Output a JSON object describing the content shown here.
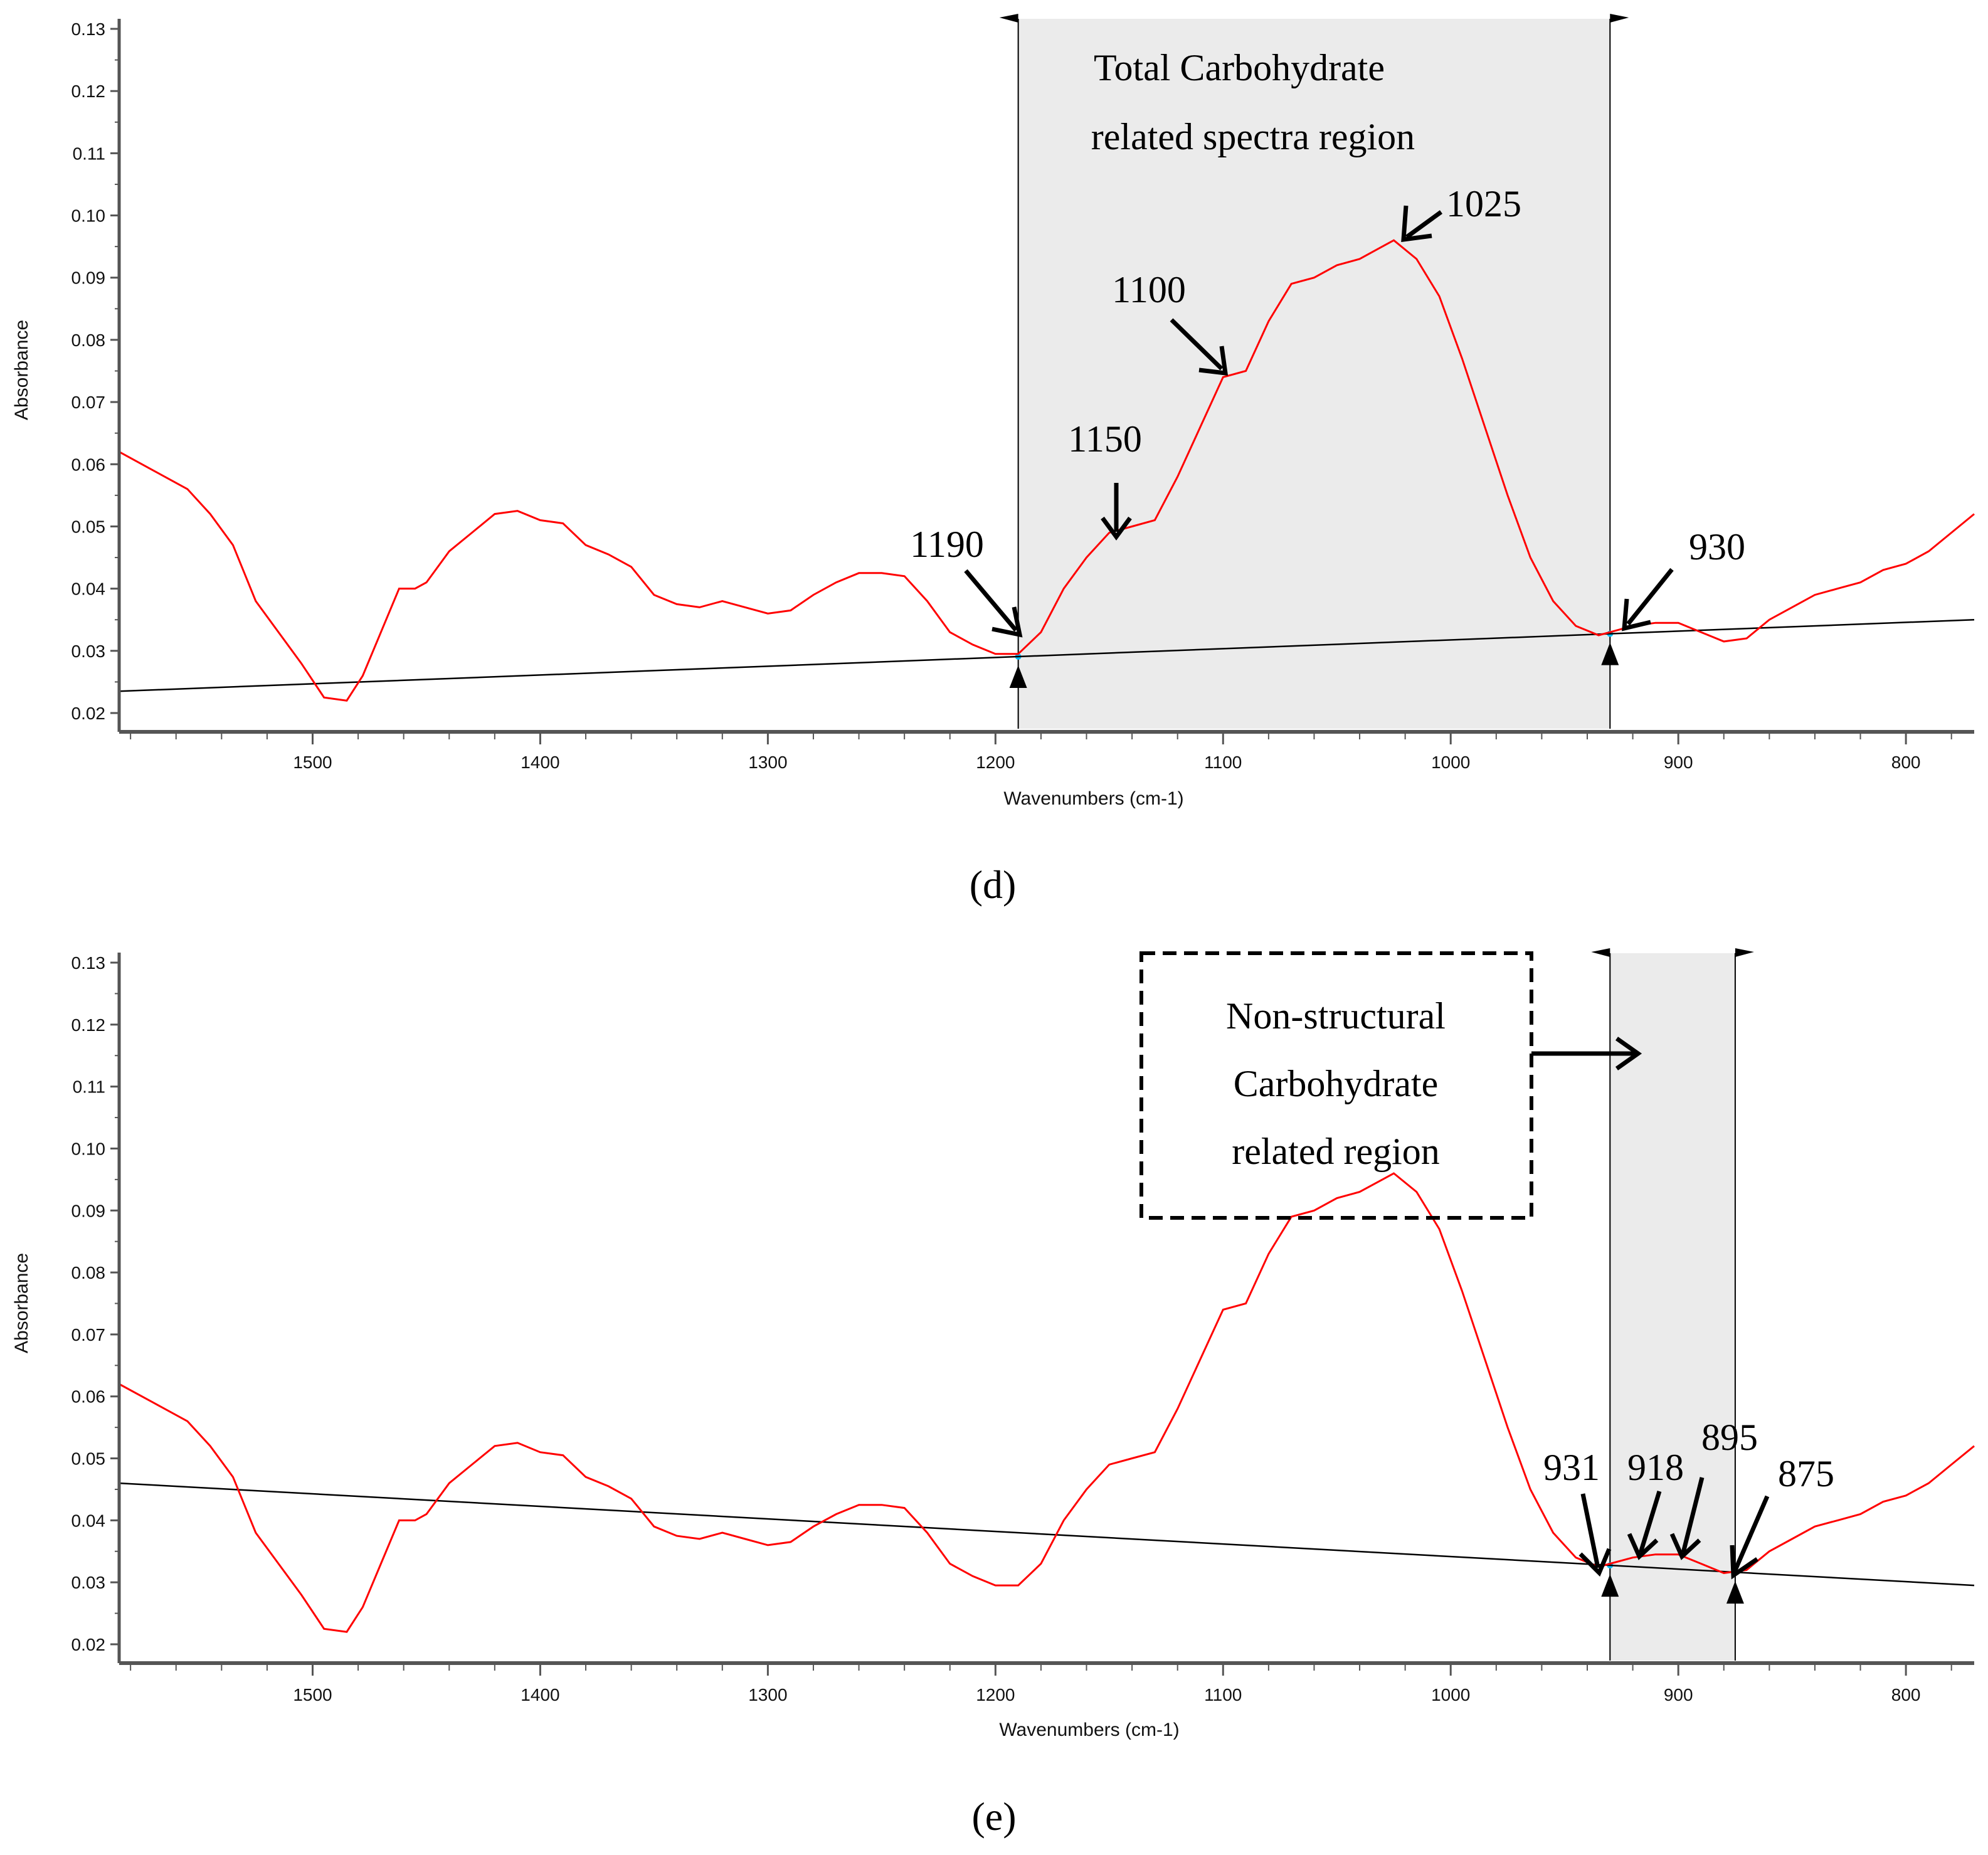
{
  "chart_data": [
    {
      "panel": "(d)",
      "type": "line",
      "xlabel": "Wavenumbers (cm-1)",
      "ylabel": "Absorbance",
      "xlim": [
        1585,
        770
      ],
      "ylim": [
        0.018,
        0.131
      ],
      "xticks": [
        "1500",
        "1400",
        "1300",
        "1200",
        "1100",
        "1000",
        "900",
        "800"
      ],
      "yticks": [
        "0.02",
        "0.03",
        "0.04",
        "0.05",
        "0.06",
        "0.07",
        "0.08",
        "0.09",
        "0.10",
        "0.11",
        "0.12",
        "0.13"
      ],
      "series": [
        {
          "name": "spectrum",
          "color": "#ff0000",
          "x": [
            1585,
            1570,
            1555,
            1545,
            1535,
            1525,
            1515,
            1505,
            1495,
            1485,
            1478,
            1470,
            1462,
            1455,
            1450,
            1440,
            1430,
            1420,
            1410,
            1400,
            1390,
            1380,
            1370,
            1360,
            1350,
            1340,
            1330,
            1320,
            1310,
            1300,
            1290,
            1280,
            1270,
            1260,
            1250,
            1240,
            1230,
            1220,
            1210,
            1200,
            1190,
            1180,
            1170,
            1160,
            1150,
            1140,
            1130,
            1120,
            1110,
            1100,
            1090,
            1080,
            1070,
            1060,
            1050,
            1040,
            1030,
            1025,
            1015,
            1005,
            995,
            985,
            975,
            965,
            955,
            945,
            935,
            930,
            920,
            910,
            900,
            890,
            880,
            870,
            860,
            850,
            840,
            830,
            820,
            810,
            800,
            790,
            780,
            770
          ],
          "y": [
            0.062,
            0.059,
            0.056,
            0.052,
            0.047,
            0.038,
            0.033,
            0.028,
            0.0225,
            0.022,
            0.026,
            0.033,
            0.04,
            0.04,
            0.041,
            0.046,
            0.049,
            0.052,
            0.0525,
            0.051,
            0.0505,
            0.047,
            0.0455,
            0.0435,
            0.039,
            0.0375,
            0.037,
            0.038,
            0.037,
            0.036,
            0.0365,
            0.039,
            0.041,
            0.0425,
            0.0425,
            0.042,
            0.038,
            0.033,
            0.031,
            0.0295,
            0.0295,
            0.033,
            0.04,
            0.045,
            0.049,
            0.05,
            0.051,
            0.058,
            0.066,
            0.074,
            0.075,
            0.083,
            0.089,
            0.09,
            0.092,
            0.093,
            0.095,
            0.096,
            0.093,
            0.087,
            0.077,
            0.066,
            0.055,
            0.045,
            0.038,
            0.034,
            0.0325,
            0.033,
            0.034,
            0.0345,
            0.0345,
            0.033,
            0.0315,
            0.032,
            0.035,
            0.037,
            0.039,
            0.04,
            0.041,
            0.043,
            0.044,
            0.046,
            0.049,
            0.052
          ]
        },
        {
          "name": "baseline",
          "color": "#000000",
          "x": [
            1585,
            770
          ],
          "y": [
            0.0235,
            0.035
          ]
        }
      ],
      "region": {
        "from": 1190,
        "to": 930,
        "label_lines": [
          "Total Carbohydrate",
          "related spectra region"
        ],
        "boxed": false
      },
      "annotations": [
        {
          "label": "1190",
          "x": 1190
        },
        {
          "label": "1150",
          "x": 1150
        },
        {
          "label": "1100",
          "x": 1100
        },
        {
          "label": "1025",
          "x": 1025
        },
        {
          "label": "930",
          "x": 930
        }
      ]
    },
    {
      "panel": "(e)",
      "type": "line",
      "xlabel": "Wavenumbers (cm-1)",
      "ylabel": "Absorbance",
      "xlim": [
        1585,
        770
      ],
      "ylim": [
        0.018,
        0.131
      ],
      "xticks": [
        "1500",
        "1400",
        "1300",
        "1200",
        "1100",
        "1000",
        "900",
        "800"
      ],
      "yticks": [
        "0.02",
        "0.03",
        "0.04",
        "0.05",
        "0.06",
        "0.07",
        "0.08",
        "0.09",
        "0.10",
        "0.11",
        "0.12",
        "0.13"
      ],
      "series": [
        {
          "name": "spectrum",
          "color": "#ff0000",
          "x": [
            1585,
            1570,
            1555,
            1545,
            1535,
            1525,
            1515,
            1505,
            1495,
            1485,
            1478,
            1470,
            1462,
            1455,
            1450,
            1440,
            1430,
            1420,
            1410,
            1400,
            1390,
            1380,
            1370,
            1360,
            1350,
            1340,
            1330,
            1320,
            1310,
            1300,
            1290,
            1280,
            1270,
            1260,
            1250,
            1240,
            1230,
            1220,
            1210,
            1200,
            1190,
            1180,
            1170,
            1160,
            1150,
            1140,
            1130,
            1120,
            1110,
            1100,
            1090,
            1080,
            1070,
            1060,
            1050,
            1040,
            1030,
            1025,
            1015,
            1005,
            995,
            985,
            975,
            965,
            955,
            945,
            935,
            930,
            920,
            910,
            900,
            890,
            880,
            870,
            860,
            850,
            840,
            830,
            820,
            810,
            800,
            790,
            780,
            770
          ],
          "y": [
            0.062,
            0.059,
            0.056,
            0.052,
            0.047,
            0.038,
            0.033,
            0.028,
            0.0225,
            0.022,
            0.026,
            0.033,
            0.04,
            0.04,
            0.041,
            0.046,
            0.049,
            0.052,
            0.0525,
            0.051,
            0.0505,
            0.047,
            0.0455,
            0.0435,
            0.039,
            0.0375,
            0.037,
            0.038,
            0.037,
            0.036,
            0.0365,
            0.039,
            0.041,
            0.0425,
            0.0425,
            0.042,
            0.038,
            0.033,
            0.031,
            0.0295,
            0.0295,
            0.033,
            0.04,
            0.045,
            0.049,
            0.05,
            0.051,
            0.058,
            0.066,
            0.074,
            0.075,
            0.083,
            0.089,
            0.09,
            0.092,
            0.093,
            0.095,
            0.096,
            0.093,
            0.087,
            0.077,
            0.066,
            0.055,
            0.045,
            0.038,
            0.034,
            0.0325,
            0.033,
            0.034,
            0.0345,
            0.0345,
            0.033,
            0.0315,
            0.032,
            0.035,
            0.037,
            0.039,
            0.04,
            0.041,
            0.043,
            0.044,
            0.046,
            0.049,
            0.052
          ]
        },
        {
          "name": "baseline",
          "color": "#000000",
          "x": [
            1585,
            770
          ],
          "y": [
            0.046,
            0.0295
          ]
        }
      ],
      "region": {
        "from": 930,
        "to": 875,
        "label_lines": [
          "Non-structural",
          "Carbohydrate",
          "related region"
        ],
        "boxed": true
      },
      "annotations": [
        {
          "label": "931",
          "x": 931
        },
        {
          "label": "918",
          "x": 918
        },
        {
          "label": "895",
          "x": 895
        },
        {
          "label": "875",
          "x": 875
        }
      ]
    }
  ],
  "captions": {
    "d": "(d)",
    "e": "(e)"
  },
  "colors": {
    "spectrum": "#ff0000",
    "baseline": "#000000",
    "region_fill": "#ebebeb",
    "marker": "#00bfff"
  }
}
